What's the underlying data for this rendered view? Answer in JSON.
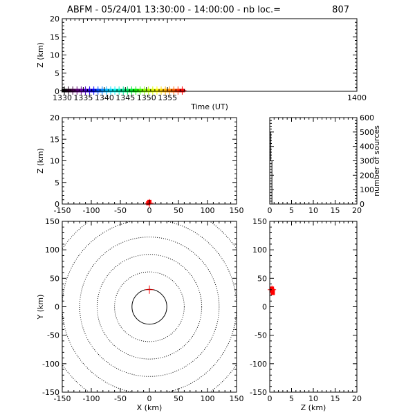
{
  "title": {
    "text": "ABFM - 05/24/01 13:30:00 - 14:00:00 - nb loc.=",
    "count": "807"
  },
  "chart_data": [
    {
      "id": "time_height",
      "type": "scatter",
      "xlabel": "Time (UT)",
      "ylabel": "Z (km)",
      "xlim": [
        1330,
        1400
      ],
      "ylim": [
        0,
        20
      ],
      "xticks": [
        1330,
        1335,
        1340,
        1345,
        1350,
        1355,
        1400
      ],
      "yticks": [
        0,
        5,
        10,
        15,
        20
      ],
      "color_scale": "rainbow by time (purple to red)",
      "points": [
        {
          "x": 1330.5,
          "y": 0.2,
          "color": "#000000"
        },
        {
          "x": 1331.5,
          "y": 0.2,
          "color": "#1a0018"
        },
        {
          "x": 1332.5,
          "y": 0.2,
          "color": "#3c0040"
        },
        {
          "x": 1333.5,
          "y": 0.2,
          "color": "#5a0070"
        },
        {
          "x": 1334.5,
          "y": 0.2,
          "color": "#64009a"
        },
        {
          "x": 1335.5,
          "y": 0.2,
          "color": "#4b00c8"
        },
        {
          "x": 1336.5,
          "y": 0.2,
          "color": "#2800f0"
        },
        {
          "x": 1337.5,
          "y": 0.2,
          "color": "#0000ff"
        },
        {
          "x": 1338.5,
          "y": 0.2,
          "color": "#0046ff"
        },
        {
          "x": 1339.5,
          "y": 0.2,
          "color": "#0082ff"
        },
        {
          "x": 1340.5,
          "y": 0.2,
          "color": "#00b4ff"
        },
        {
          "x": 1341.5,
          "y": 0.2,
          "color": "#00dcff"
        },
        {
          "x": 1342.5,
          "y": 0.2,
          "color": "#00f5f5"
        },
        {
          "x": 1343.5,
          "y": 0.2,
          "color": "#00f0c8"
        },
        {
          "x": 1344.5,
          "y": 0.2,
          "color": "#00e696"
        },
        {
          "x": 1345.5,
          "y": 0.2,
          "color": "#00e664"
        },
        {
          "x": 1346.5,
          "y": 0.2,
          "color": "#00eb32"
        },
        {
          "x": 1347.5,
          "y": 0.2,
          "color": "#00f000"
        },
        {
          "x": 1348.5,
          "y": 0.2,
          "color": "#3cff00"
        },
        {
          "x": 1349.5,
          "y": 0.2,
          "color": "#82ff00"
        },
        {
          "x": 1350.5,
          "y": 0.2,
          "color": "#b4ff00"
        },
        {
          "x": 1351.5,
          "y": 0.2,
          "color": "#dcff00"
        },
        {
          "x": 1352.5,
          "y": 0.2,
          "color": "#ffff00"
        },
        {
          "x": 1353.5,
          "y": 0.2,
          "color": "#ffdc00"
        },
        {
          "x": 1354.5,
          "y": 0.2,
          "color": "#ffb400"
        },
        {
          "x": 1355.5,
          "y": 0.2,
          "color": "#ff8c00"
        },
        {
          "x": 1356.5,
          "y": 0.2,
          "color": "#ff6400"
        },
        {
          "x": 1357.5,
          "y": 0.2,
          "color": "#ff3200"
        },
        {
          "x": 1358.5,
          "y": 0.2,
          "color": "#ff0000"
        }
      ]
    },
    {
      "id": "x_height",
      "type": "scatter",
      "xlabel": "",
      "ylabel": "Z (km)",
      "xlim": [
        -150,
        150
      ],
      "ylim": [
        0,
        20
      ],
      "xticks": [
        -150,
        -100,
        -50,
        0,
        50,
        100,
        150
      ],
      "yticks": [
        0,
        5,
        10,
        15,
        20
      ],
      "points": [
        {
          "x": -2,
          "y": 0.2,
          "color": "#ff0000"
        },
        {
          "x": 0,
          "y": 0.5,
          "color": "#ff0000"
        }
      ],
      "marker": {
        "x": 0,
        "y": 0.2,
        "symbol": "+"
      }
    },
    {
      "id": "height_histogram",
      "type": "line",
      "xlabel": "",
      "ylabel": "number of sources",
      "ylabel_side": "right",
      "xlim": [
        0,
        20
      ],
      "ylim": [
        0,
        600
      ],
      "xticks": [
        0,
        5,
        10,
        15,
        20
      ],
      "yticks": [
        0,
        100,
        200,
        300,
        400,
        500,
        600
      ],
      "step_x": [
        0,
        0.25,
        0.5,
        0.75,
        1.0,
        20
      ],
      "step_y": [
        500,
        300,
        0,
        0,
        0,
        0
      ]
    },
    {
      "id": "plan_view",
      "type": "scatter",
      "xlabel": "X (km)",
      "ylabel": "Y (km)",
      "xlim": [
        -150,
        150
      ],
      "ylim": [
        -150,
        150
      ],
      "xticks": [
        -150,
        -100,
        -50,
        0,
        50,
        100,
        150
      ],
      "yticks": [
        -150,
        -100,
        -50,
        0,
        50,
        100,
        150
      ],
      "range_rings_km": [
        30,
        60,
        90,
        120,
        150,
        180
      ],
      "solid_ring_km": 30,
      "station": {
        "x": 0,
        "y": 0
      },
      "marker": {
        "x": 0,
        "y": 30,
        "symbol": "+",
        "color": "#ff0000"
      }
    },
    {
      "id": "height_y",
      "type": "scatter",
      "xlabel": "Z (km)",
      "ylabel": "",
      "xlim": [
        0,
        20
      ],
      "ylim": [
        -150,
        150
      ],
      "xticks": [
        0,
        5,
        10,
        15,
        20
      ],
      "yticks": [
        -150,
        -100,
        -50,
        0,
        50,
        100,
        150
      ],
      "points": [
        {
          "x": 0.5,
          "y": 30,
          "color": "#ff0000"
        },
        {
          "x": 0.7,
          "y": 26,
          "color": "#ff0000"
        }
      ],
      "marker": {
        "x": 0.5,
        "y": 30,
        "symbol": "+"
      }
    }
  ]
}
